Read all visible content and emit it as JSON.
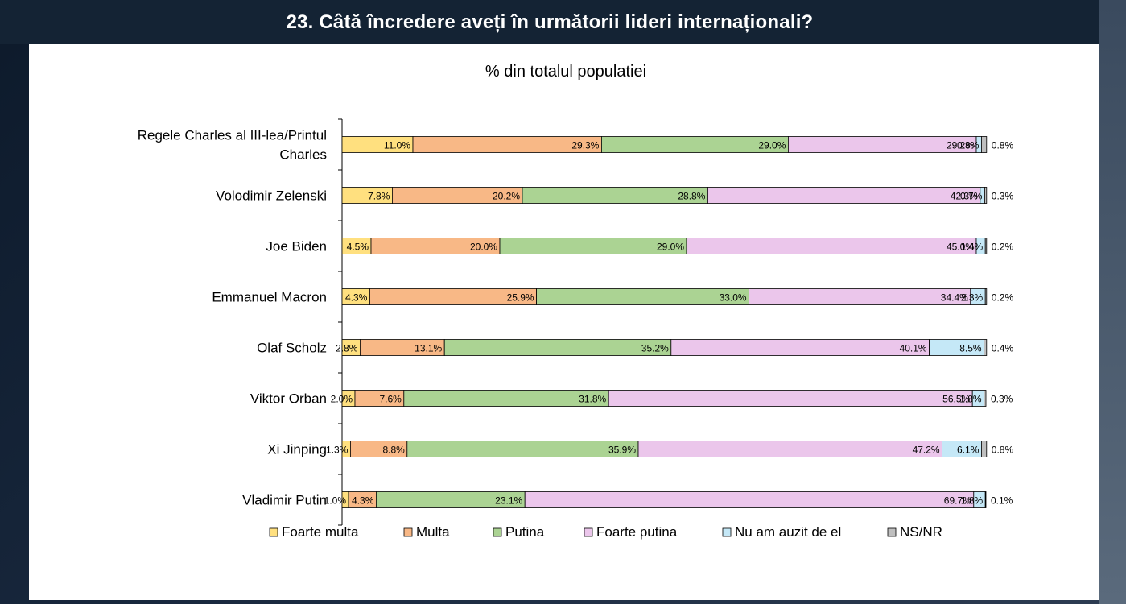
{
  "header": {
    "title": "23. Câtă încredere aveți în următorii lideri internaționali?"
  },
  "chart_data": {
    "type": "bar",
    "orientation": "horizontal",
    "stacked": true,
    "title": "% din totalul populatiei",
    "categories": [
      [
        "Regele Charles al III-lea/Printul",
        "Charles"
      ],
      [
        "Volodimir Zelenski"
      ],
      [
        "Joe Biden"
      ],
      [
        "Emmanuel Macron"
      ],
      [
        "Olaf Scholz"
      ],
      [
        "Viktor Orban"
      ],
      [
        "Xi Jinping"
      ],
      [
        "Vladimir Putin"
      ]
    ],
    "series": [
      {
        "name": "Foarte multa",
        "color": "#FFE07F",
        "values": [
          11.0,
          7.8,
          4.5,
          4.3,
          2.8,
          2.0,
          1.3,
          1.0
        ],
        "labels": [
          "11.0%",
          "7.8%",
          "4.5%",
          "4.3%",
          "2.8%",
          "2.0%",
          "1.3%",
          "1.0%"
        ]
      },
      {
        "name": "Multa",
        "color": "#F8B886",
        "values": [
          29.3,
          20.2,
          20.0,
          25.9,
          13.1,
          7.6,
          8.8,
          4.3
        ],
        "labels": [
          "29.3%",
          "20.2%",
          "20.0%",
          "25.9%",
          "13.1%",
          "7.6%",
          "8.8%",
          "4.3%"
        ]
      },
      {
        "name": "Putina",
        "color": "#ABD393",
        "values": [
          29.0,
          28.8,
          29.0,
          33.0,
          35.2,
          31.8,
          35.9,
          23.1
        ],
        "labels": [
          "29.0%",
          "28.8%",
          "29.0%",
          "33.0%",
          "35.2%",
          "31.8%",
          "35.9%",
          "23.1%"
        ]
      },
      {
        "name": "Foarte putina",
        "color": "#EBC6EB",
        "values": [
          29.2,
          42.3,
          45.0,
          34.4,
          40.1,
          56.5,
          47.2,
          69.7
        ],
        "labels": [
          "29.2%",
          "42.3%",
          "45.0%",
          "34.4%",
          "40.1%",
          "56.5%",
          "47.2%",
          "69.7%"
        ]
      },
      {
        "name": "Nu am auzit de el",
        "color": "#C5E8F7",
        "values": [
          0.8,
          0.7,
          1.4,
          2.3,
          8.5,
          1.8,
          6.1,
          1.8
        ],
        "labels": [
          "0.8%",
          "0.7%",
          "1.4%",
          "2.3%",
          "8.5%",
          "1.8%",
          "6.1%",
          "1.8%"
        ]
      },
      {
        "name": "NS/NR",
        "color": "#BFBFBF",
        "values": [
          0.8,
          0.3,
          0.2,
          0.2,
          0.4,
          0.3,
          0.8,
          0.1
        ],
        "labels": [
          "0.8%",
          "0.3%",
          "0.2%",
          "0.2%",
          "0.4%",
          "0.3%",
          "0.8%",
          "0.1%"
        ]
      }
    ],
    "xlim": [
      0,
      100
    ],
    "grid": false,
    "legend_position": "bottom"
  }
}
